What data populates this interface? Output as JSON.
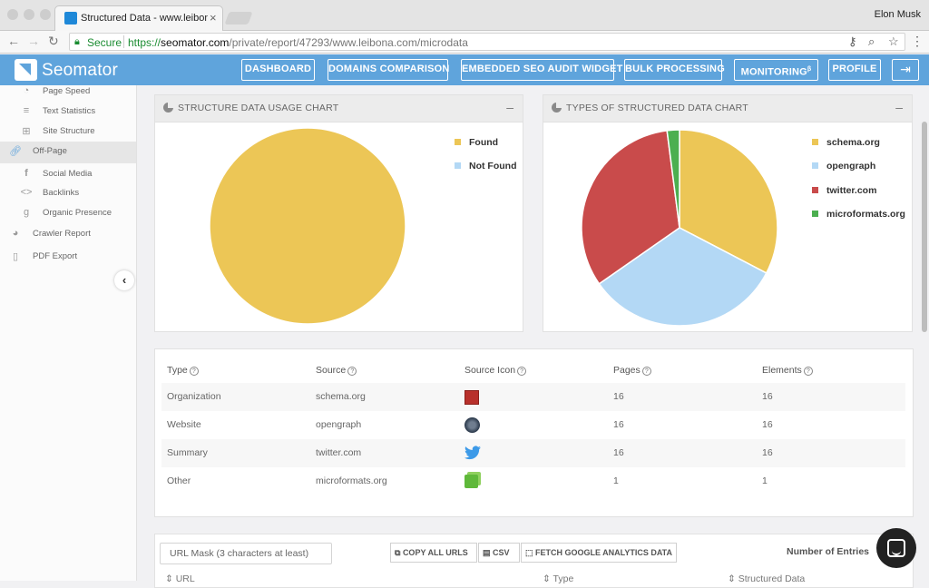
{
  "browser": {
    "tab_title": "Structured Data - www.leibona",
    "tab_close": "×",
    "user_name": "Elon Musk",
    "secure_label": "Secure",
    "url_https": "https://",
    "url_host": "seomator.com",
    "url_path": "/private/report/47293/www.leibona.com/microdata"
  },
  "header": {
    "logo": "Seomator",
    "nav": [
      "DASHBOARD",
      "DOMAINS COMPARISON",
      "EMBEDDED SEO AUDIT WIDGET",
      "BULK PROCESSING",
      "MONITORING",
      "PROFILE"
    ],
    "monitoring_sup": "β"
  },
  "sidebar": {
    "items": [
      {
        "label": "Page Speed",
        "icon": "stopwatch-icon"
      },
      {
        "label": "Text Statistics",
        "icon": "text-lines-icon"
      },
      {
        "label": "Site Structure",
        "icon": "sitemap-icon"
      },
      {
        "label": "Off-Page",
        "icon": "link-icon"
      },
      {
        "label": "Social Media",
        "icon": "facebook-icon"
      },
      {
        "label": "Backlinks",
        "icon": "code-icon"
      },
      {
        "label": "Organic Presence",
        "icon": "google-icon"
      },
      {
        "label": "Crawler Report",
        "icon": "pie-icon"
      },
      {
        "label": "PDF Export",
        "icon": "pdf-icon"
      }
    ]
  },
  "usage_chart": {
    "title": "STRUCTURE DATA USAGE CHART",
    "legend": [
      {
        "label": "Found",
        "color": "#ecc656"
      },
      {
        "label": "Not Found",
        "color": "#b3d8f5"
      }
    ]
  },
  "types_chart": {
    "title": "TYPES OF STRUCTURED DATA CHART",
    "legend": [
      {
        "label": "schema.org",
        "color": "#ecc656"
      },
      {
        "label": "opengraph",
        "color": "#b3d8f5"
      },
      {
        "label": "twitter.com",
        "color": "#c94b4b"
      },
      {
        "label": "microformats.org",
        "color": "#4caf50"
      }
    ]
  },
  "chart_data": [
    {
      "type": "pie",
      "title": "STRUCTURE DATA USAGE CHART",
      "categories": [
        "Found",
        "Not Found"
      ],
      "values": [
        100,
        0
      ],
      "colors": [
        "#ecc656",
        "#b3d8f5"
      ],
      "legend": "right"
    },
    {
      "type": "pie",
      "title": "TYPES OF STRUCTURED DATA CHART",
      "categories": [
        "schema.org",
        "opengraph",
        "twitter.com",
        "microformats.org"
      ],
      "values": [
        16,
        16,
        16,
        1
      ],
      "colors": [
        "#ecc656",
        "#b3d8f5",
        "#c94b4b",
        "#4caf50"
      ],
      "legend": "right"
    }
  ],
  "table": {
    "headers": [
      "Type",
      "Source",
      "Source Icon",
      "Pages",
      "Elements"
    ],
    "rows": [
      {
        "type": "Organization",
        "source": "schema.org",
        "icon": "schema-org-icon",
        "pages": "16",
        "elements": "16"
      },
      {
        "type": "Website",
        "source": "opengraph",
        "icon": "opengraph-icon",
        "pages": "16",
        "elements": "16"
      },
      {
        "type": "Summary",
        "source": "twitter.com",
        "icon": "twitter-icon",
        "pages": "16",
        "elements": "16"
      },
      {
        "type": "Other",
        "source": "microformats.org",
        "icon": "microformats-icon",
        "pages": "1",
        "elements": "1"
      }
    ]
  },
  "bottom": {
    "url_mask_placeholder": "URL Mask (3 characters at least)",
    "buttons": [
      "COPY ALL URLS",
      "CSV",
      "FETCH GOOGLE ANALYTICS DATA"
    ],
    "number_of_entries": "Number of Entries",
    "columns": [
      "URL",
      "Type",
      "Structured Data"
    ]
  }
}
